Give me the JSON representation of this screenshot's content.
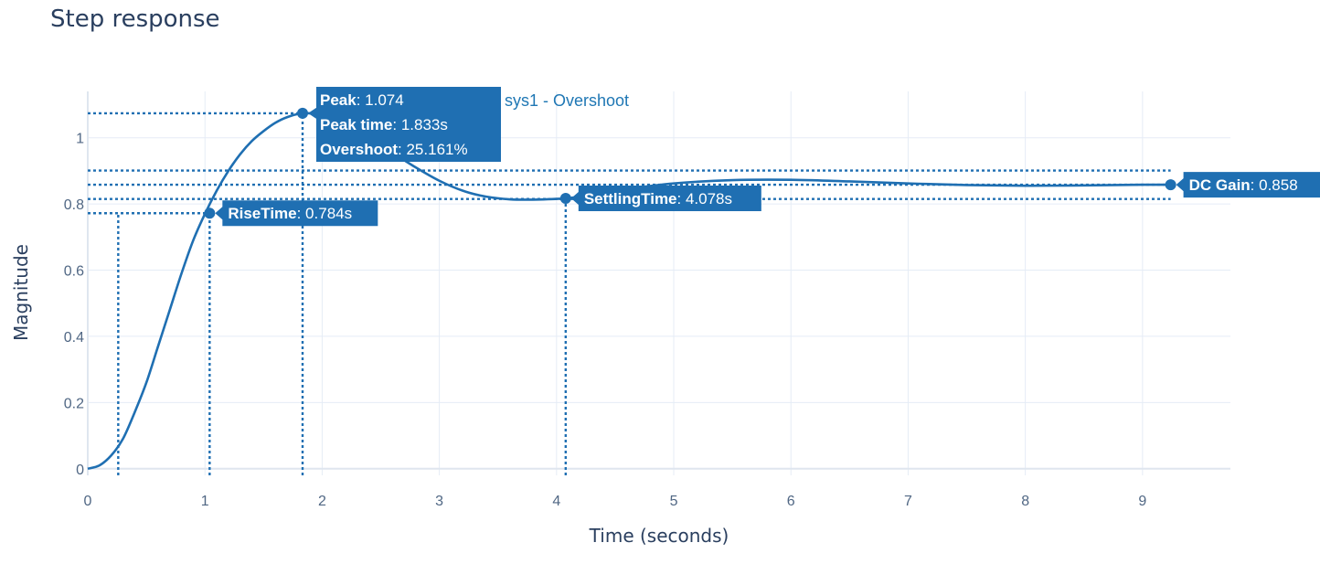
{
  "title": "Step response",
  "colors": {
    "line": "#1f6fb2",
    "annotation_bg": "#1f6fb2",
    "grid": "#e5ecf6",
    "axis_text": "#506784"
  },
  "chart_data": {
    "type": "line",
    "title": "Step response",
    "xlabel": "Time (seconds)",
    "ylabel": "Magnitude",
    "xlim": [
      0,
      9.75
    ],
    "ylim": [
      -0.02,
      1.14
    ],
    "xticks": [
      0,
      1,
      2,
      3,
      4,
      5,
      6,
      7,
      8,
      9
    ],
    "yticks": [
      0,
      0.2,
      0.4,
      0.6,
      0.8,
      1
    ],
    "xtick_labels": [
      "0",
      "1",
      "2",
      "3",
      "4",
      "5",
      "6",
      "7",
      "8",
      "9"
    ],
    "ytick_labels": [
      "0",
      "0.2",
      "0.4",
      "0.6",
      "0.8",
      "1"
    ],
    "grid": true,
    "series": [
      {
        "name": "sys1 - Overshoot",
        "x": [
          0,
          0.1,
          0.2,
          0.3,
          0.4,
          0.5,
          0.6,
          0.7,
          0.8,
          0.9,
          1.0,
          1.1,
          1.2,
          1.3,
          1.4,
          1.5,
          1.6,
          1.7,
          1.833,
          2.0,
          2.2,
          2.4,
          2.6,
          2.8,
          3.0,
          3.2,
          3.4,
          3.6,
          3.8,
          4.078,
          4.3,
          4.6,
          5.0,
          5.5,
          6.0,
          6.5,
          7.0,
          7.5,
          8.0,
          8.5,
          9.0,
          9.24
        ],
        "y": [
          0,
          0.01,
          0.04,
          0.09,
          0.17,
          0.26,
          0.37,
          0.48,
          0.59,
          0.69,
          0.77,
          0.84,
          0.9,
          0.95,
          0.99,
          1.02,
          1.045,
          1.062,
          1.074,
          1.067,
          1.04,
          1.0,
          0.955,
          0.91,
          0.87,
          0.84,
          0.822,
          0.814,
          0.813,
          0.817,
          0.828,
          0.845,
          0.862,
          0.872,
          0.873,
          0.868,
          0.862,
          0.857,
          0.855,
          0.856,
          0.858,
          0.858
        ]
      }
    ],
    "markers": [
      {
        "name": "RiseTime",
        "x": 1.04,
        "y": 0.772,
        "label_bold": "RiseTime",
        "label_value": ": 0.784s"
      },
      {
        "name": "Peak",
        "x": 1.833,
        "y": 1.074
      },
      {
        "name": "SettlingTime",
        "x": 4.078,
        "y": 0.817,
        "label_bold": "SettlingTime",
        "label_value": ": 4.078s"
      },
      {
        "name": "DC Gain",
        "x": 9.24,
        "y": 0.858,
        "label_bold": "DC Gain",
        "label_value": ": 0.858"
      }
    ],
    "peak_annotation": [
      {
        "bold": "Peak",
        "value": ": 1.074"
      },
      {
        "bold": "Peak time",
        "value": ": 1.833s"
      },
      {
        "bold": "Overshoot",
        "value": ": 25.161%"
      }
    ],
    "guides": {
      "rise_start_x": 0.26,
      "rise_time_x": 1.04,
      "rise_level_y": 0.772,
      "peak_x": 1.833,
      "peak_y": 1.074,
      "settling_x": 4.078,
      "settling_band_upper": 0.901,
      "settling_band_lower": 0.815,
      "dc_gain_y": 0.858
    },
    "legend": {
      "position": "top-center",
      "entries": [
        "sys1 - Overshoot"
      ]
    }
  }
}
